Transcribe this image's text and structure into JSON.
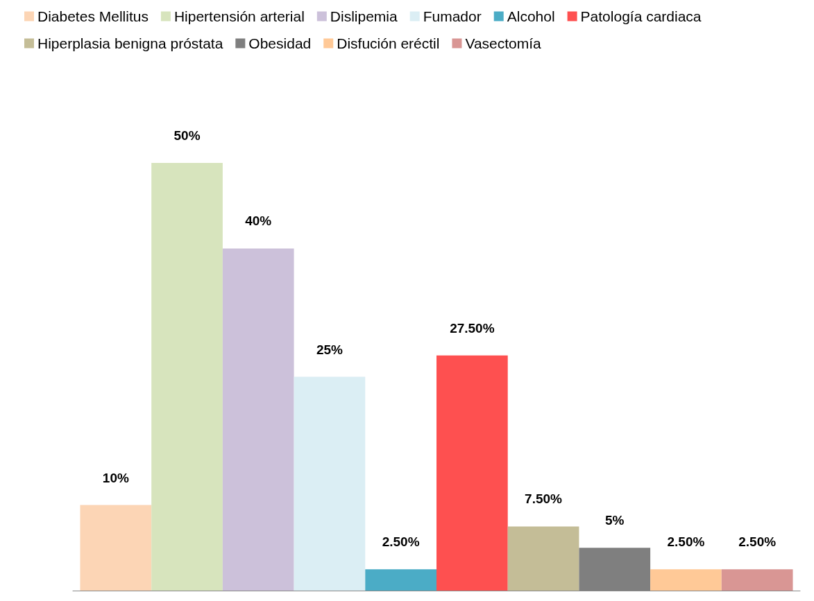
{
  "chart_data": {
    "type": "bar",
    "categories": [
      null
    ],
    "legend": "top",
    "series": [
      {
        "name": "Diabetes Mellitus",
        "color": "#fcd5b5",
        "values": [
          10
        ],
        "value_labels": [
          "10%"
        ]
      },
      {
        "name": "Hipertensión arterial",
        "color": "#d7e4bd",
        "values": [
          50
        ],
        "value_labels": [
          "50%"
        ]
      },
      {
        "name": "Dislipemia",
        "color": "#ccc1da",
        "values": [
          40
        ],
        "value_labels": [
          "40%"
        ]
      },
      {
        "name": "Fumador",
        "color": "#dbeef4",
        "values": [
          25
        ],
        "value_labels": [
          "25%"
        ]
      },
      {
        "name": "Alcohol",
        "color": "#4bacc6",
        "values": [
          2.5
        ],
        "value_labels": [
          "2.50%"
        ]
      },
      {
        "name": "Patología cardiaca",
        "color": "#fe5050",
        "values": [
          27.5
        ],
        "value_labels": [
          "27.50%"
        ]
      },
      {
        "name": "Hiperplasia benigna próstata",
        "color": "#c4bd97",
        "values": [
          7.5
        ],
        "value_labels": [
          "7.50%"
        ]
      },
      {
        "name": "Obesidad",
        "color": "#7f7f7f",
        "values": [
          5
        ],
        "value_labels": [
          "5%"
        ]
      },
      {
        "name": "Disfución eréctil",
        "color": "#ffc997",
        "values": [
          2.5
        ],
        "value_labels": [
          "2.50%"
        ]
      },
      {
        "name": "Vasectomía",
        "color": "#d99694",
        "values": [
          2.5
        ],
        "value_labels": [
          "2.50%"
        ]
      }
    ]
  }
}
